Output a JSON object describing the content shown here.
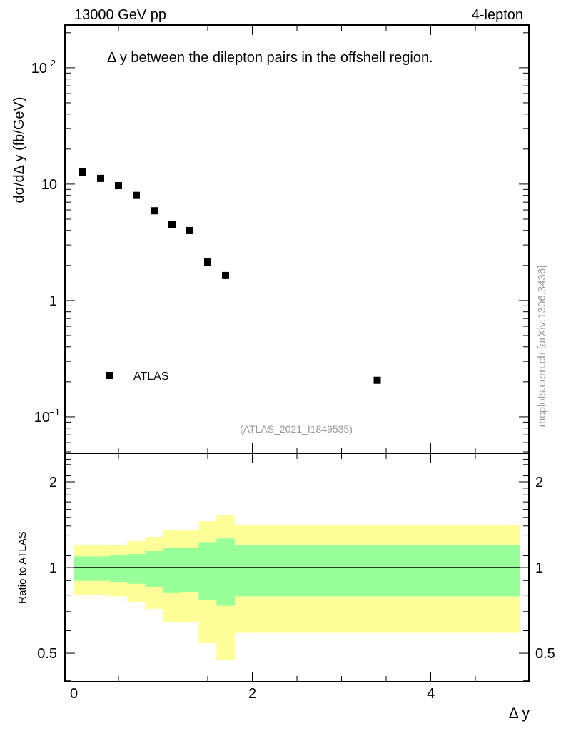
{
  "header": {
    "left": "13000 GeV pp",
    "right": "4-lepton"
  },
  "watermark": "mcplots.cern.ch [arXiv:1306.3436]",
  "analysis_id": "(ATLAS_2021_I1849535)",
  "colors": {
    "band_outer": "#ffff99",
    "band_inner": "#99ff99",
    "marker": "#000000",
    "watermark": "#999999"
  },
  "chart_data": [
    {
      "type": "scatter",
      "title": "Δ y between the dilepton pairs in the offshell region.",
      "xlabel": "Δ y",
      "ylabel": "dσ/dΔ y (fb/GeV)",
      "yscale": "log",
      "xlim": [
        -0.1,
        5.1
      ],
      "ylim": [
        0.0486,
        233
      ],
      "ytick_labels": [
        "10^-1",
        "1",
        "10",
        "10^2"
      ],
      "legend": {
        "placement": "bottom-left",
        "entries": [
          "ATLAS"
        ]
      },
      "series": [
        {
          "name": "ATLAS",
          "x": [
            0.1,
            0.3,
            0.5,
            0.7,
            0.9,
            1.1,
            1.3,
            1.5,
            1.7,
            3.4
          ],
          "y": [
            12.7,
            11.2,
            9.7,
            8.0,
            5.9,
            4.47,
            3.99,
            2.14,
            1.64,
            0.206
          ]
        }
      ]
    },
    {
      "type": "area",
      "ylabel": "Ratio to ATLAS",
      "xlabel": "Δ y",
      "yscale": "log",
      "xlim": [
        -0.1,
        5.1
      ],
      "ylim": [
        0.397,
        2.52
      ],
      "ytick_labels": [
        "0.5",
        "1",
        "2"
      ],
      "xtick_labels": [
        "0",
        "2",
        "4"
      ],
      "bin_edges": [
        0,
        0.2,
        0.4,
        0.6,
        0.8,
        1.0,
        1.2,
        1.4,
        1.6,
        1.8,
        5.0
      ],
      "reference_line": 1,
      "bands": [
        {
          "name": "total uncertainty",
          "low": [
            0.803,
            0.803,
            0.792,
            0.758,
            0.716,
            0.642,
            0.645,
            0.542,
            0.472,
            0.589
          ],
          "high": [
            1.196,
            1.196,
            1.203,
            1.238,
            1.282,
            1.355,
            1.35,
            1.455,
            1.53,
            1.406
          ]
        },
        {
          "name": "statistical uncertainty",
          "low": [
            0.898,
            0.898,
            0.891,
            0.877,
            0.856,
            0.818,
            0.822,
            0.768,
            0.734,
            0.792
          ],
          "high": [
            1.095,
            1.095,
            1.103,
            1.116,
            1.142,
            1.175,
            1.175,
            1.229,
            1.265,
            1.203
          ]
        }
      ]
    }
  ]
}
